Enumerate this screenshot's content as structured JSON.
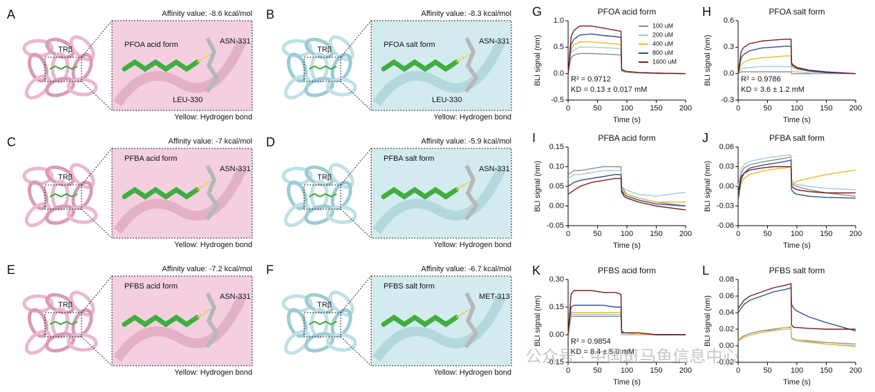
{
  "panels": [
    {
      "letter": "A",
      "affinity": "Affinity value: -8.6 kcal/mol",
      "protein": "TRβ",
      "ligand": "PFOA acid form",
      "residues": [
        "ASN-331",
        "LEU-330"
      ],
      "note": "Yellow: Hydrogen bond"
    },
    {
      "letter": "B",
      "affinity": "Affinity value: -8.3 kcal/mol",
      "protein": "TRβ",
      "ligand": "PFOA salt form",
      "residues": [
        "ASN-331",
        "LEU-330"
      ],
      "note": "Yellow: Hydrogen bond"
    },
    {
      "letter": "C",
      "affinity": "Affinity value: -7 kcal/mol",
      "protein": "TRβ",
      "ligand": "PFBA acid form",
      "residues": [
        "ASN-331"
      ],
      "note": "Yellow: Hydrogen bond"
    },
    {
      "letter": "D",
      "affinity": "Affinity value: -5.9 kcal/mol",
      "protein": "TRβ",
      "ligand": "PFBA salt form",
      "residues": [
        "ASN-331"
      ],
      "note": "Yellow: Hydrogen bond"
    },
    {
      "letter": "E",
      "affinity": "Affinity value: -7.2 kcal/mol",
      "protein": "TRβ",
      "ligand": "PFBS acid form",
      "residues": [
        "ASN-331"
      ],
      "note": "Yellow: Hydrogen bond"
    },
    {
      "letter": "F",
      "affinity": "Affinity value: -6.7 kcal/mol",
      "protein": "TRβ",
      "ligand": "PFBS salt form",
      "residues": [
        "MET-313"
      ],
      "note": "Yellow: Hydrogen bond"
    }
  ],
  "watermark": "公众号 · 中国斑马鱼信息中心",
  "chart_data": [
    {
      "type": "line",
      "letter": "G",
      "title": "PFOA acid form",
      "x_label": "Time (s)",
      "y_label": "BLI signal (nm)",
      "x": [
        0,
        5,
        10,
        20,
        40,
        60,
        80,
        90,
        91,
        95,
        100,
        120,
        150,
        200
      ],
      "xlim": [
        0,
        200
      ],
      "xticks": [
        0,
        50,
        100,
        150,
        200
      ],
      "ylim": [
        -0.5,
        1.0
      ],
      "yticks": [
        -0.5,
        {
          "value": 0,
          "label": "0.0"
        },
        0.5,
        {
          "value": 1,
          "label": "1.0"
        }
      ],
      "legend": "upper right",
      "annotations": [
        "R² = 0.9712",
        "KD = 0.13 ± 0.017 mM"
      ],
      "series": [
        {
          "name": "100 uM",
          "color": "#8c8c8c",
          "values": [
            0,
            0.3,
            0.35,
            0.38,
            0.38,
            0.37,
            0.36,
            0.35,
            0.05,
            0.03,
            0.02,
            0.01,
            0,
            0
          ]
        },
        {
          "name": "200 uM",
          "color": "#9ec9e2",
          "values": [
            0,
            0.4,
            0.45,
            0.5,
            0.5,
            0.49,
            0.48,
            0.47,
            0.05,
            0.03,
            0.02,
            0.01,
            0,
            0
          ]
        },
        {
          "name": "400 uM",
          "color": "#e8b828",
          "values": [
            0,
            0.45,
            0.55,
            0.6,
            0.6,
            0.58,
            0.56,
            0.55,
            0.06,
            0.04,
            0.03,
            0.02,
            0.01,
            0
          ]
        },
        {
          "name": "800 uM",
          "color": "#2e4f8f",
          "values": [
            0,
            0.55,
            0.65,
            0.73,
            0.75,
            0.72,
            0.7,
            0.68,
            0.07,
            0.05,
            0.04,
            0.02,
            0.01,
            0
          ]
        },
        {
          "name": "1600 uM",
          "color": "#7a1a1a",
          "values": [
            0,
            0.7,
            0.82,
            0.9,
            0.9,
            0.86,
            0.82,
            0.8,
            0.08,
            0.06,
            0.04,
            0.02,
            0.01,
            0
          ]
        }
      ]
    },
    {
      "type": "line",
      "letter": "H",
      "title": "PFOA salt form",
      "x_label": "Time (s)",
      "y_label": "BLI signal (nm)",
      "x": [
        0,
        5,
        10,
        20,
        40,
        60,
        80,
        90,
        91,
        95,
        100,
        120,
        150,
        200
      ],
      "xlim": [
        0,
        200
      ],
      "xticks": [
        0,
        50,
        100,
        150,
        200
      ],
      "ylim": [
        -0.3,
        0.6
      ],
      "yticks": [
        -0.3,
        {
          "value": 0,
          "label": "0.0"
        },
        0.3,
        0.6
      ],
      "annotations": [
        "R² = 0.9786",
        "KD = 3.6 ± 1.2 mM"
      ],
      "series": [
        {
          "color": "#8c8c8c",
          "values": [
            0,
            0.02,
            0.02,
            0.02,
            0.02,
            0.02,
            0.02,
            0.02,
            0,
            0,
            0,
            0,
            0,
            0
          ]
        },
        {
          "color": "#9ec9e2",
          "values": [
            0,
            0.05,
            0.06,
            0.07,
            0.08,
            0.08,
            0.08,
            0.08,
            0.03,
            0.02,
            0.02,
            0.01,
            0,
            0
          ]
        },
        {
          "color": "#e8b828",
          "values": [
            0,
            0.1,
            0.13,
            0.16,
            0.18,
            0.19,
            0.2,
            0.2,
            0.08,
            0.06,
            0.05,
            0.03,
            0.01,
            0
          ]
        },
        {
          "color": "#2e4f8f",
          "values": [
            0,
            0.18,
            0.22,
            0.26,
            0.29,
            0.3,
            0.31,
            0.31,
            0.1,
            0.08,
            0.06,
            0.03,
            0.01,
            0
          ]
        },
        {
          "color": "#7a1a1a",
          "values": [
            0,
            0.25,
            0.3,
            0.34,
            0.37,
            0.38,
            0.39,
            0.39,
            0.12,
            0.09,
            0.07,
            0.04,
            0.02,
            0
          ]
        }
      ]
    },
    {
      "type": "line",
      "letter": "I",
      "title": "PFBA acid form",
      "x_label": "Time (s)",
      "y_label": "BLI signal (nm)",
      "x": [
        0,
        5,
        10,
        20,
        40,
        60,
        80,
        90,
        91,
        95,
        100,
        120,
        150,
        200
      ],
      "xlim": [
        0,
        200
      ],
      "xticks": [
        0,
        50,
        100,
        150,
        200
      ],
      "ylim": [
        -0.05,
        0.15
      ],
      "yticks": [
        -0.05,
        {
          "value": 0,
          "label": "0.00"
        },
        0.05,
        {
          "value": 0.1,
          "label": "0.10"
        },
        0.15
      ],
      "series": [
        {
          "color": "#8c8c8c",
          "values": [
            0.08,
            0.085,
            0.09,
            0.09,
            0.095,
            0.1,
            0.1,
            0.1,
            0.05,
            0.04,
            0.03,
            0.02,
            0.01,
            0
          ]
        },
        {
          "color": "#9ec9e2",
          "values": [
            0.07,
            0.075,
            0.08,
            0.08,
            0.085,
            0.09,
            0.09,
            0.09,
            0.05,
            0.045,
            0.04,
            0.03,
            0.025,
            0.035
          ]
        },
        {
          "color": "#e8b828",
          "values": [
            0.05,
            0.055,
            0.06,
            0.065,
            0.07,
            0.075,
            0.08,
            0.08,
            0.04,
            0.035,
            0.03,
            0.02,
            0.01,
            0.01
          ]
        },
        {
          "color": "#2e4f8f",
          "values": [
            0.05,
            0.055,
            0.06,
            0.065,
            0.07,
            0.075,
            0.08,
            0.08,
            0.04,
            0.03,
            0.025,
            0.015,
            0.005,
            0
          ]
        },
        {
          "color": "#7a1a1a",
          "values": [
            0.03,
            0.035,
            0.04,
            0.05,
            0.06,
            0.065,
            0.07,
            0.07,
            0.035,
            0.025,
            0.02,
            0.01,
            0,
            -0.01
          ]
        }
      ]
    },
    {
      "type": "line",
      "letter": "J",
      "title": "PFBA salt form",
      "x_label": "Time (s)",
      "y_label": "BLI signal (nm)",
      "x": [
        0,
        5,
        10,
        20,
        40,
        60,
        80,
        90,
        91,
        95,
        100,
        120,
        150,
        200
      ],
      "xlim": [
        0,
        200
      ],
      "xticks": [
        0,
        50,
        100,
        150,
        200
      ],
      "ylim": [
        -0.06,
        0.06
      ],
      "yticks": [
        -0.06,
        -0.03,
        {
          "value": 0,
          "label": "0.00"
        },
        0.03,
        0.06
      ],
      "series": [
        {
          "color": "#8c8c8c",
          "values": [
            0,
            0.02,
            0.028,
            0.033,
            0.037,
            0.04,
            0.043,
            0.045,
            0.005,
            0.002,
            0,
            -0.005,
            -0.01,
            -0.015
          ]
        },
        {
          "color": "#9ec9e2",
          "values": [
            0,
            0.025,
            0.033,
            0.038,
            0.042,
            0.045,
            0.047,
            0.048,
            0.01,
            0.005,
            0.003,
            0,
            -0.003,
            -0.005
          ]
        },
        {
          "color": "#e8b828",
          "values": [
            -0.02,
            0.005,
            0.012,
            0.018,
            0.023,
            0.026,
            0.028,
            0.03,
            0,
            0.005,
            0.008,
            0.012,
            0.018,
            0.025
          ]
        },
        {
          "color": "#2e4f8f",
          "values": [
            -0.02,
            0.01,
            0.02,
            0.028,
            0.032,
            0.035,
            0.038,
            0.04,
            -0.005,
            -0.01,
            -0.012,
            -0.015,
            -0.017,
            -0.018
          ]
        },
        {
          "color": "#7a1a1a",
          "values": [
            -0.01,
            0.015,
            0.02,
            0.025,
            0.028,
            0.03,
            0.03,
            0.03,
            0,
            -0.003,
            -0.005,
            -0.008,
            -0.01,
            -0.01
          ]
        }
      ]
    },
    {
      "type": "line",
      "letter": "K",
      "title": "PFBS acid form",
      "x_label": "Time (s)",
      "y_label": "BLI signal (nm)",
      "x": [
        0,
        5,
        10,
        20,
        40,
        60,
        80,
        90,
        91,
        95,
        100,
        120,
        150,
        200
      ],
      "xlim": [
        0,
        200
      ],
      "xticks": [
        0,
        50,
        100,
        150,
        200
      ],
      "ylim": [
        -0.15,
        0.3
      ],
      "yticks": [
        -0.15,
        {
          "value": 0,
          "label": "0.00"
        },
        0.15,
        {
          "value": 0.3,
          "label": "0.30"
        }
      ],
      "annotations": [
        "R² = 0.9854",
        "KD = 8.4 ± 5.0 mM"
      ],
      "series": [
        {
          "color": "#8c8c8c",
          "values": [
            0,
            0.1,
            0.1,
            0.1,
            0.1,
            0.1,
            0.1,
            0.1,
            0,
            0,
            0,
            0,
            0,
            0
          ]
        },
        {
          "color": "#9ec9e2",
          "values": [
            0,
            0.11,
            0.11,
            0.11,
            0.11,
            0.11,
            0.11,
            0.11,
            0,
            0,
            0,
            0,
            0,
            0
          ]
        },
        {
          "color": "#e8b828",
          "values": [
            0,
            0.12,
            0.12,
            0.12,
            0.12,
            0.12,
            0.12,
            0.12,
            0.01,
            0.01,
            0.01,
            0,
            0,
            0
          ]
        },
        {
          "color": "#2e4f8f",
          "values": [
            0,
            0.15,
            0.16,
            0.16,
            0.16,
            0.16,
            0.15,
            0.15,
            0.01,
            0.01,
            0.01,
            0.01,
            0,
            0
          ]
        },
        {
          "color": "#7a1a1a",
          "values": [
            0,
            0.22,
            0.24,
            0.24,
            0.24,
            0.23,
            0.23,
            0.22,
            0.02,
            0.01,
            0.01,
            0.01,
            0,
            0
          ]
        }
      ]
    },
    {
      "type": "line",
      "letter": "L",
      "title": "PFBS salt form",
      "x_label": "Time (s)",
      "y_label": "BLI signal (nm)",
      "x": [
        0,
        5,
        10,
        20,
        40,
        60,
        80,
        90,
        91,
        95,
        100,
        120,
        150,
        200
      ],
      "xlim": [
        0,
        200
      ],
      "xticks": [
        0,
        50,
        100,
        150,
        200
      ],
      "ylim": [
        -0.02,
        0.08
      ],
      "yticks": [
        -0.02,
        {
          "value": 0,
          "label": "0.00"
        },
        0.02,
        0.04,
        0.06,
        0.08
      ],
      "series": [
        {
          "color": "#8c8c8c",
          "values": [
            0.005,
            0.01,
            0.012,
            0.015,
            0.018,
            0.02,
            0.022,
            0.022,
            0.01,
            0.008,
            0.007,
            0.006,
            0.004,
            0.002
          ]
        },
        {
          "color": "#9ec9e2",
          "values": [
            0.005,
            0.008,
            0.01,
            0.013,
            0.016,
            0.018,
            0.02,
            0.02,
            0.008,
            0.007,
            0.006,
            0.004,
            0.002,
            0
          ]
        },
        {
          "color": "#e8b828",
          "values": [
            0.005,
            0.008,
            0.01,
            0.013,
            0.016,
            0.019,
            0.022,
            0.023,
            0.01,
            0.008,
            0.007,
            0.005,
            0.002,
            -0.001
          ]
        },
        {
          "color": "#2e4f8f",
          "values": [
            0.04,
            0.045,
            0.05,
            0.055,
            0.06,
            0.065,
            0.068,
            0.07,
            0.05,
            0.045,
            0.042,
            0.035,
            0.028,
            0.018
          ]
        },
        {
          "color": "#7a1a1a",
          "values": [
            0.045,
            0.05,
            0.055,
            0.06,
            0.065,
            0.07,
            0.073,
            0.075,
            0.025,
            0.022,
            0.022,
            0.021,
            0.02,
            0.02
          ]
        }
      ]
    }
  ]
}
